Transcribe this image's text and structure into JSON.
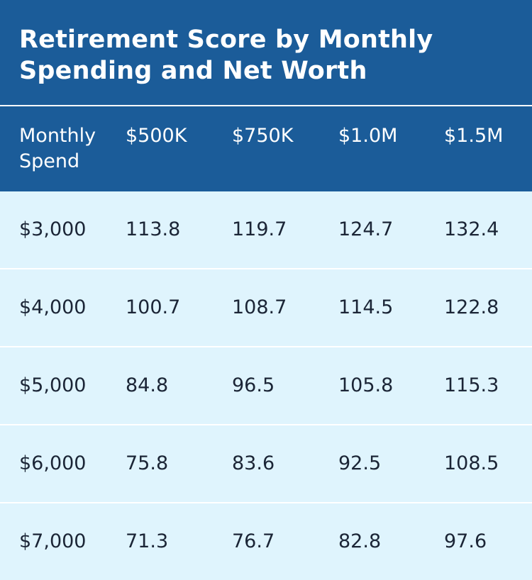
{
  "chart_data": {
    "type": "table",
    "title": "Retirement Score by Monthly Spending and Net Worth",
    "columns": [
      "Monthly Spend",
      "$500K",
      "$750K",
      "$1.0M",
      "$1.5M"
    ],
    "rows": [
      [
        "$3,000",
        "113.8",
        "119.7",
        "124.7",
        "132.4"
      ],
      [
        "$4,000",
        "100.7",
        "108.7",
        "114.5",
        "122.8"
      ],
      [
        "$5,000",
        "84.8",
        "96.5",
        "105.8",
        "115.3"
      ],
      [
        "$6,000",
        "75.8",
        "83.6",
        "92.5",
        "108.5"
      ],
      [
        "$7,000",
        "71.3",
        "76.7",
        "82.8",
        "97.6"
      ]
    ]
  },
  "colors": {
    "header_bg": "#1b5c99",
    "body_bg": "#dff4fd",
    "header_text": "#ffffff",
    "body_text": "#1b2536"
  }
}
